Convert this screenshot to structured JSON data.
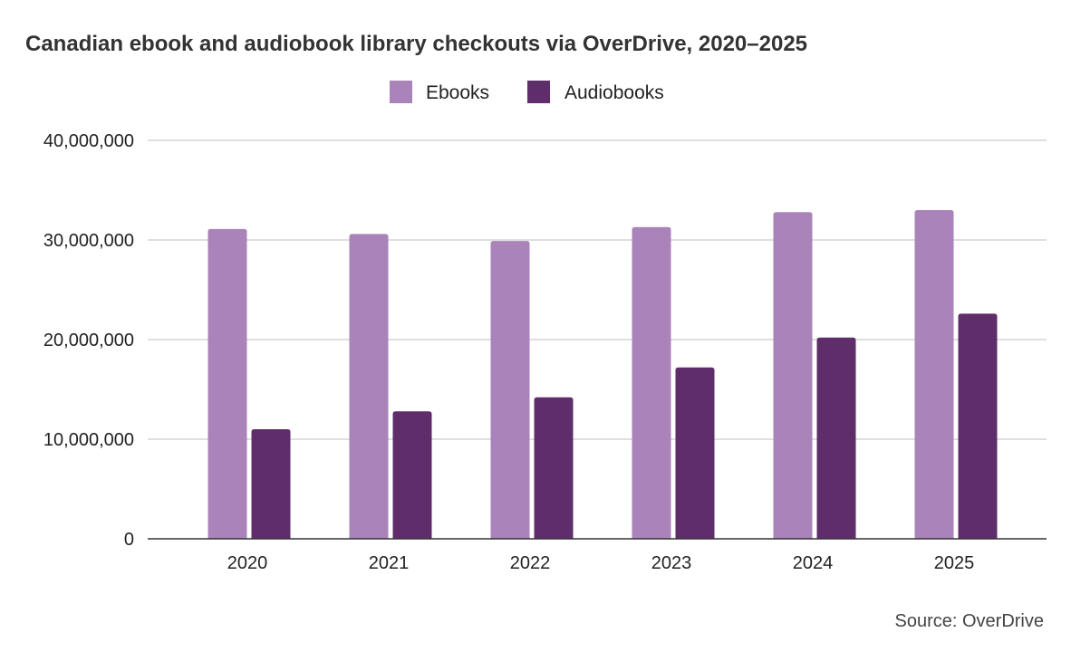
{
  "chart_data": {
    "type": "bar",
    "title": "Canadian ebook and audiobook library checkouts via OverDrive, 2020–2025",
    "xlabel": "",
    "ylabel": "",
    "categories": [
      "2020",
      "2021",
      "2022",
      "2023",
      "2024",
      "2025"
    ],
    "series": [
      {
        "name": "Ebooks",
        "color": "#a983b9",
        "values": [
          31100000,
          30600000,
          29900000,
          31300000,
          32800000,
          33000000
        ]
      },
      {
        "name": "Audiobooks",
        "color": "#5e2d6a",
        "values": [
          11000000,
          12800000,
          14200000,
          17200000,
          20200000,
          22600000
        ]
      }
    ],
    "ylim": [
      0,
      40000000
    ],
    "yticks": [
      "0",
      "10,000,000",
      "20,000,000",
      "30,000,000",
      "40,000,000"
    ],
    "ytick_values": [
      0,
      10000000,
      20000000,
      30000000,
      40000000
    ],
    "grid": true,
    "legend_position": "top-center",
    "source": "Source: OverDrive"
  },
  "colors": {
    "gridline": "#cccccc",
    "axis": "#333333"
  }
}
